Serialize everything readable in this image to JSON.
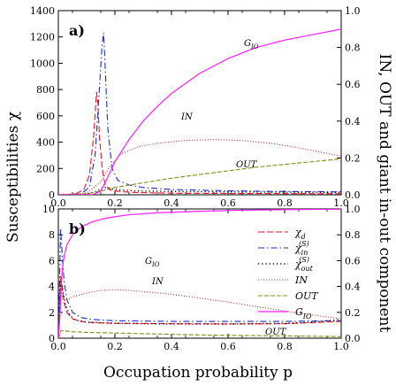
{
  "chart_data": {
    "type": "line",
    "xlabel": "Occupation probability p",
    "ylabel_left": "Susceptibilities χ",
    "ylabel_right": "IN, OUT and giant in-out component",
    "xlim": [
      0,
      1
    ],
    "xticks": [
      "0.0",
      "0.2",
      "0.4",
      "0.6",
      "0.8",
      "1.0"
    ],
    "right_ylim": [
      0,
      1
    ],
    "right_yticks": [
      "0.0",
      "0.2",
      "0.4",
      "0.6",
      "0.8",
      "1.0"
    ],
    "colors": {
      "chi_d": "#e8102a",
      "chi_in": "#1a2bd6",
      "chi_out": "#000000",
      "IN": "#b0282a",
      "OUT": "#8a8a1a",
      "GIO": "#ff1aff"
    },
    "panels": [
      {
        "label": "a)",
        "ylim_left": [
          0,
          1400
        ],
        "left_yticks": [
          "0",
          "200",
          "400",
          "600",
          "800",
          "1000",
          "1200",
          "1400"
        ],
        "annotations": [
          "G_IO",
          "IN",
          "OUT"
        ],
        "series": [
          {
            "key": "chi_d",
            "axis": "left",
            "style": "dash",
            "x": [
              0.0,
              0.06,
              0.09,
              0.11,
              0.125,
              0.135,
              0.14,
              0.145,
              0.155,
              0.165,
              0.18,
              0.2,
              0.25,
              0.3,
              0.4,
              0.6,
              0.8,
              1.0
            ],
            "y": [
              0,
              5,
              40,
              150,
              450,
              780,
              700,
              450,
              200,
              80,
              40,
              28,
              20,
              16,
              12,
              10,
              9,
              8
            ]
          },
          {
            "key": "chi_in",
            "axis": "left",
            "style": "dashdot",
            "x": [
              0.0,
              0.08,
              0.11,
              0.13,
              0.145,
              0.155,
              0.16,
              0.165,
              0.175,
              0.19,
              0.21,
              0.25,
              0.3,
              0.4,
              0.6,
              0.8,
              1.0
            ],
            "y": [
              0,
              5,
              60,
              300,
              800,
              1150,
              1230,
              1000,
              500,
              200,
              110,
              75,
              55,
              40,
              30,
              25,
              22
            ]
          },
          {
            "key": "chi_out",
            "axis": "left",
            "style": "dot",
            "x": [
              0.0,
              0.1,
              0.14,
              0.16,
              0.18,
              0.2,
              0.25,
              0.3,
              0.4,
              0.6,
              0.8,
              1.0
            ],
            "y": [
              0,
              5,
              30,
              60,
              50,
              40,
              32,
              28,
              25,
              22,
              20,
              18
            ]
          },
          {
            "key": "IN",
            "axis": "right",
            "style": "finedot",
            "x": [
              0.0,
              0.1,
              0.15,
              0.18,
              0.22,
              0.28,
              0.35,
              0.45,
              0.55,
              0.65,
              0.75,
              0.85,
              1.0
            ],
            "y": [
              0,
              0.01,
              0.07,
              0.15,
              0.22,
              0.26,
              0.28,
              0.295,
              0.3,
              0.295,
              0.28,
              0.255,
              0.21
            ]
          },
          {
            "key": "OUT",
            "axis": "right",
            "style": "longdash",
            "x": [
              0.0,
              0.1,
              0.15,
              0.2,
              0.3,
              0.4,
              0.5,
              0.6,
              0.7,
              0.8,
              0.9,
              1.0
            ],
            "y": [
              0,
              0.005,
              0.02,
              0.04,
              0.065,
              0.09,
              0.11,
              0.13,
              0.15,
              0.165,
              0.18,
              0.195
            ]
          },
          {
            "key": "GIO",
            "axis": "right",
            "style": "solid",
            "x": [
              0.0,
              0.12,
              0.15,
              0.17,
              0.2,
              0.25,
              0.3,
              0.35,
              0.4,
              0.5,
              0.6,
              0.7,
              0.8,
              0.9,
              1.0
            ],
            "y": [
              0,
              0.0,
              0.02,
              0.08,
              0.18,
              0.3,
              0.4,
              0.48,
              0.55,
              0.66,
              0.74,
              0.8,
              0.84,
              0.87,
              0.9
            ]
          }
        ]
      },
      {
        "label": "b)",
        "ylim_left": [
          0,
          10
        ],
        "left_yticks": [
          "0",
          "2",
          "4",
          "6",
          "8",
          "10"
        ],
        "annotations": [
          "G_IO",
          "IN",
          "OUT"
        ],
        "series": [
          {
            "key": "chi_d",
            "axis": "left",
            "style": "dash",
            "x": [
              0.0,
              0.004,
              0.008,
              0.012,
              0.02,
              0.03,
              0.05,
              0.08,
              0.12,
              0.2,
              0.4,
              0.6,
              0.8,
              0.9,
              1.0
            ],
            "y": [
              0,
              2.5,
              4.8,
              4.2,
              2.8,
              2.0,
              1.5,
              1.3,
              1.2,
              1.15,
              1.12,
              1.1,
              1.12,
              1.2,
              1.3
            ]
          },
          {
            "key": "chi_in",
            "axis": "left",
            "style": "dashdot",
            "x": [
              0.0,
              0.004,
              0.008,
              0.012,
              0.02,
              0.03,
              0.05,
              0.08,
              0.12,
              0.2,
              0.4,
              0.6,
              0.8,
              1.0
            ],
            "y": [
              0,
              4.0,
              8.5,
              7.0,
              4.5,
              3.0,
              2.0,
              1.6,
              1.45,
              1.35,
              1.3,
              1.3,
              1.3,
              1.35
            ]
          },
          {
            "key": "chi_out",
            "axis": "left",
            "style": "dot",
            "x": [
              0.0,
              0.005,
              0.01,
              0.015,
              0.025,
              0.04,
              0.06,
              0.1,
              0.2,
              0.4,
              0.6,
              0.8,
              0.9,
              1.0
            ],
            "y": [
              0,
              3.0,
              4.5,
              3.8,
              2.6,
              1.8,
              1.4,
              1.25,
              1.15,
              1.1,
              1.1,
              1.15,
              1.25,
              1.45
            ]
          },
          {
            "key": "IN",
            "axis": "right",
            "style": "finedot",
            "x": [
              0.0,
              0.005,
              0.01,
              0.015,
              0.025,
              0.05,
              0.1,
              0.15,
              0.2,
              0.25,
              0.3,
              0.4,
              0.5,
              0.6,
              0.7,
              0.8,
              0.9,
              0.95,
              1.0
            ],
            "y": [
              0,
              0.2,
              0.4,
              0.3,
              0.29,
              0.32,
              0.35,
              0.37,
              0.375,
              0.37,
              0.36,
              0.34,
              0.31,
              0.28,
              0.245,
              0.21,
              0.18,
              0.165,
              0.15
            ]
          },
          {
            "key": "OUT",
            "axis": "right",
            "style": "longdash",
            "x": [
              0.0,
              0.01,
              0.03,
              0.05,
              0.1,
              0.2,
              0.3,
              0.4,
              0.5,
              0.6,
              0.7,
              0.8,
              0.9,
              1.0
            ],
            "y": [
              0,
              0.06,
              0.055,
              0.05,
              0.045,
              0.04,
              0.035,
              0.03,
              0.025,
              0.022,
              0.02,
              0.018,
              0.015,
              0.012
            ]
          },
          {
            "key": "GIO",
            "axis": "right",
            "style": "solid",
            "x": [
              0.0,
              0.005,
              0.01,
              0.015,
              0.02,
              0.03,
              0.05,
              0.08,
              0.12,
              0.17,
              0.25,
              0.35,
              0.5,
              0.65,
              0.8,
              1.0
            ],
            "y": [
              0,
              0.15,
              0.4,
              0.55,
              0.63,
              0.72,
              0.8,
              0.86,
              0.9,
              0.93,
              0.955,
              0.97,
              0.982,
              0.99,
              0.995,
              0.998
            ]
          }
        ]
      }
    ],
    "legend": {
      "panel": "b)",
      "placement": "right-middle",
      "entries": [
        {
          "key": "chi_d",
          "symbol": "χ",
          "sub": "d",
          "sup": ""
        },
        {
          "key": "chi_in",
          "symbol": "χ",
          "sub": "in",
          "sup": "(S)"
        },
        {
          "key": "chi_out",
          "symbol": "χ",
          "sub": "out",
          "sup": "(S)"
        },
        {
          "key": "IN",
          "symbol": "IN",
          "sub": "",
          "sup": ""
        },
        {
          "key": "OUT",
          "symbol": "OUT",
          "sub": "",
          "sup": ""
        },
        {
          "key": "GIO",
          "symbol": "G",
          "sub": "IO",
          "sup": ""
        }
      ]
    }
  }
}
